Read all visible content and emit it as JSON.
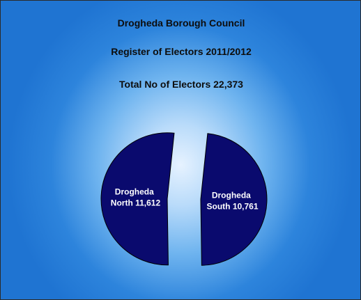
{
  "chart_data": {
    "type": "pie",
    "title": "Drogheda Borough Council",
    "subtitles": [
      "Register of Electors 2011/2012",
      "Total No of Electors  22,373"
    ],
    "categories": [
      "Drogheda North",
      "Drogheda South"
    ],
    "values": [
      11612,
      10761
    ],
    "labels": [
      [
        "Drogheda",
        "North 11,612"
      ],
      [
        "Drogheda",
        "South 10,761"
      ]
    ],
    "exploded": true,
    "colors": {
      "slice": "#0a0a6e",
      "slice_border": "#000000",
      "label": "#ffffff",
      "title": "#0d0d0d"
    }
  }
}
